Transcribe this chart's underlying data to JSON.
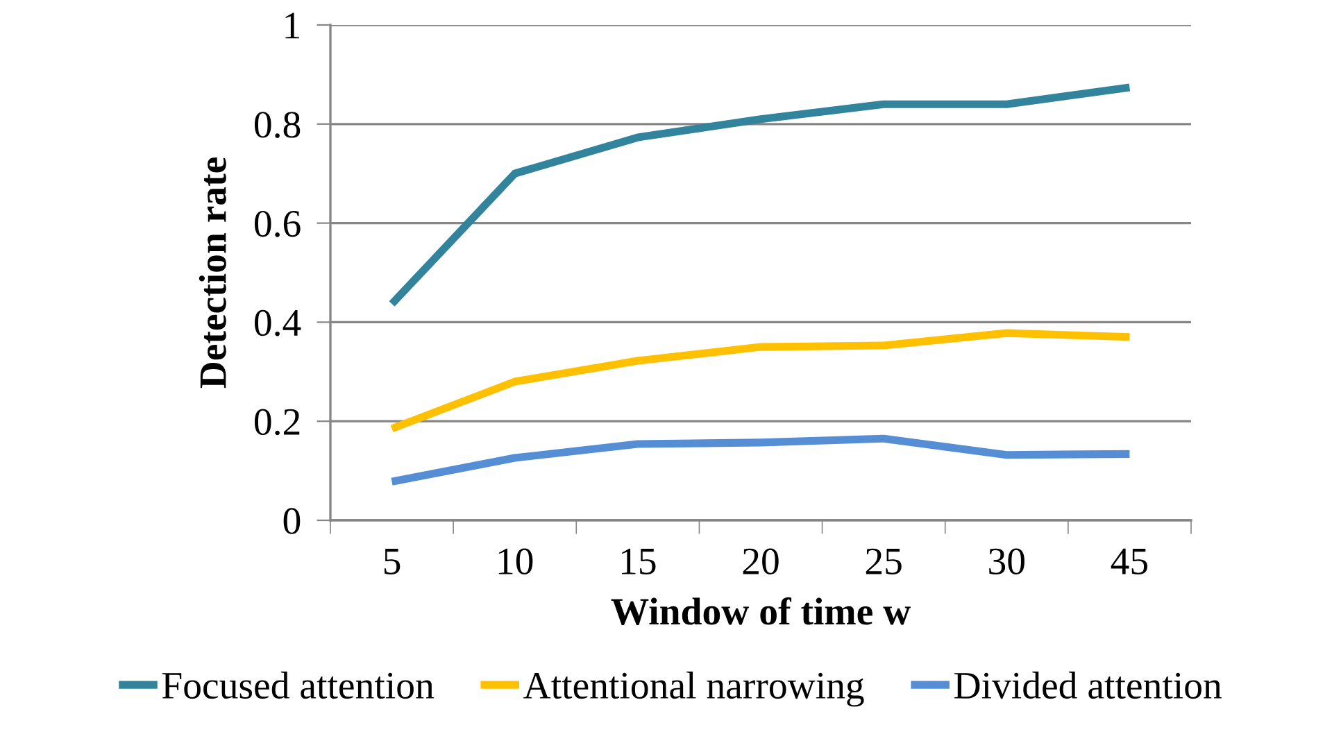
{
  "chart_data": {
    "type": "line",
    "xlabel": "Window of time w",
    "ylabel": "Detection rate",
    "categories": [
      "5",
      "10",
      "15",
      "20",
      "25",
      "30",
      "45"
    ],
    "series": [
      {
        "name": "Focused attention",
        "color": "#31849b",
        "values": [
          0.437,
          0.7,
          0.773,
          0.81,
          0.84,
          0.84,
          0.874
        ]
      },
      {
        "name": "Attentional narrowing",
        "color": "#ffc000",
        "values": [
          0.185,
          0.28,
          0.322,
          0.35,
          0.353,
          0.378,
          0.37
        ]
      },
      {
        "name": "Divided attention",
        "color": "#558ed5",
        "values": [
          0.078,
          0.126,
          0.154,
          0.157,
          0.165,
          0.132,
          0.134
        ]
      }
    ],
    "ylim": [
      0,
      1
    ],
    "yticks": [
      0,
      {
        "value": 0.2,
        "label": "0.2"
      },
      {
        "value": 0.4,
        "label": "0.4"
      },
      {
        "value": 0.6,
        "label": "0.6"
      },
      {
        "value": 0.8,
        "label": "0.8"
      },
      1
    ],
    "grid": "y",
    "legend": "bottom",
    "marker": "none",
    "line_style": "solid"
  }
}
